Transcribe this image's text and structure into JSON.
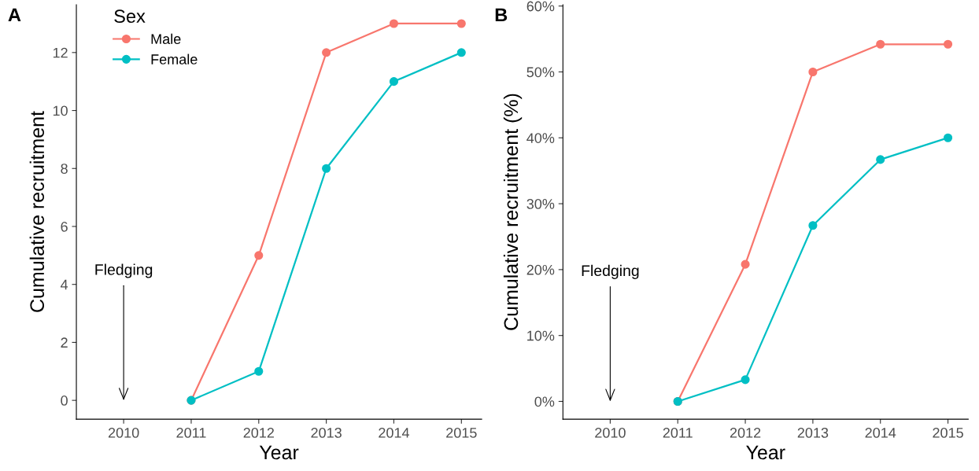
{
  "chart_data": [
    {
      "type": "line",
      "title": "A",
      "xlabel": "Year",
      "ylabel": "Cumulative recruitment",
      "legend_title": "Sex",
      "legend": "top left",
      "marker": "circle",
      "grid": false,
      "x": [
        2011,
        2012,
        2013,
        2014,
        2015
      ],
      "series": [
        {
          "name": "Male",
          "color": "#f8766d",
          "values": [
            0,
            5,
            12,
            13,
            13
          ]
        },
        {
          "name": "Female",
          "color": "#00bfc4",
          "values": [
            0,
            1,
            8,
            11,
            12
          ]
        }
      ],
      "xlim": [
        2009.3,
        2015.3
      ],
      "xticks": [
        2010,
        2011,
        2012,
        2013,
        2014,
        2015
      ],
      "ylim": [
        -0.65,
        13.65
      ],
      "yticks": [
        0,
        2,
        4,
        6,
        8,
        10,
        12
      ],
      "annotations": [
        "Fledging"
      ]
    },
    {
      "type": "line",
      "title": "B",
      "xlabel": "Year",
      "ylabel": "Cumulative recruitment (%)",
      "marker": "circle",
      "grid": false,
      "x": [
        2011,
        2012,
        2013,
        2014,
        2015
      ],
      "series": [
        {
          "color": "#f8766d",
          "values": [
            0,
            20.8,
            50,
            54.2,
            54.2
          ]
        },
        {
          "color": "#00bfc4",
          "values": [
            0,
            3.3,
            26.7,
            36.7,
            40
          ]
        }
      ],
      "xlim": [
        2009.3,
        2015.3
      ],
      "xticks": [
        2010,
        2011,
        2012,
        2013,
        2014,
        2015
      ],
      "ylim": [
        -2.7,
        60.2
      ],
      "yticks": [
        {
          "value": 0,
          "label": "0%"
        },
        {
          "value": 10,
          "label": "10%"
        },
        {
          "value": 20,
          "label": "20%"
        },
        {
          "value": 30,
          "label": "30%"
        },
        {
          "value": 40,
          "label": "40%"
        },
        {
          "value": 50,
          "label": "50%"
        },
        {
          "value": 60,
          "label": "60%"
        }
      ],
      "annotations": [
        "Fledging"
      ]
    }
  ]
}
